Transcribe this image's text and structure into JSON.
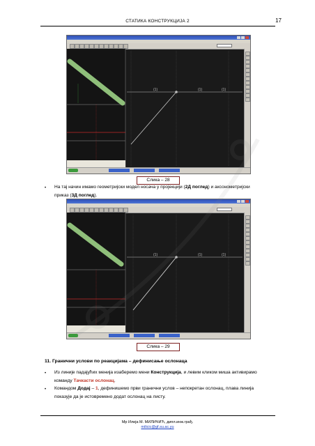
{
  "header": {
    "title": "СТАТИКА КОНСТРУКЦИЈА 2",
    "page_number": "17"
  },
  "figures": [
    {
      "caption": "Слика – 28",
      "element_label": "(1)"
    },
    {
      "caption": "Слика – 29",
      "element_label": "(1)"
    }
  ],
  "paragraphs": {
    "p1_line1_prefix": "На тај начин имамо геометријски модел носача у пројекцији (",
    "p1_bold_2d": "2Д поглед",
    "p1_line1_suffix": ") и аксонометријски",
    "p1_line2_prefix": "приказ (",
    "p1_bold_3d": "3Д поглед",
    "p1_line2_suffix": ").",
    "section_heading": "11.  Гранични услови по реакцијама – дефинисање ослонаца",
    "p2_line1_prefix": "Из линије падајућих менија изаберемо мени ",
    "p2_bold": "Конструкција",
    "p2_line1_suffix": ", и левим кликом миша активирамо",
    "p2_line2_prefix": "команду ",
    "p2_red": "Тачкасти ослонац",
    "p2_line2_suffix": ".",
    "p3_line1_prefix": "Командом ",
    "p3_bold": "Додај",
    "p3_line1_mid": " – ",
    "p3_icon_label": "1",
    "p3_line1_suffix": ", дефинишемо први гранични услов – непокретан ослонац, плава линија",
    "p3_line2": "показује да је истовремено додат ослонац на листу."
  },
  "bullet_symbol": "•",
  "footer": {
    "author": "Мр Илија М. МИЛИЧИЋ, дипл.инж.грађ.",
    "email": "milicic@gf.su.ac.yu"
  },
  "colors": {
    "caption_border": "#7b1f1f",
    "highlight_red": "#c0392b",
    "beam_green": "#8fbf7a",
    "link_blue": "#1a3fc2"
  }
}
